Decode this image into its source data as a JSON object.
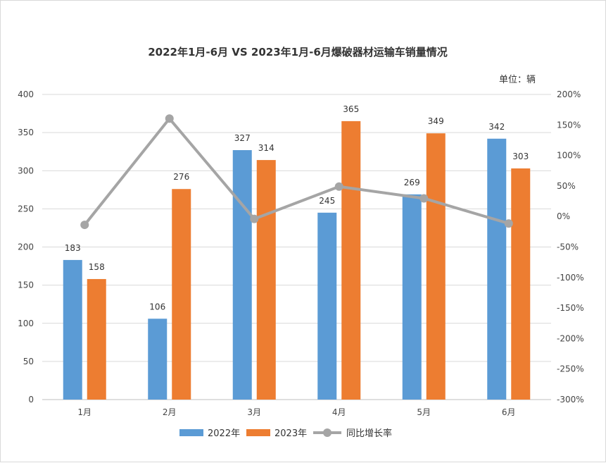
{
  "chart_data": {
    "type": "bar",
    "title": "2022年1月-6月 VS 2023年1月-6月爆破器材运输车销量情况",
    "unit_label": "单位：辆",
    "categories": [
      "1月",
      "2月",
      "3月",
      "4月",
      "5月",
      "6月"
    ],
    "series": [
      {
        "name": "2022年",
        "type": "bar",
        "axis": "left",
        "color": "#5b9bd5",
        "values": [
          183,
          106,
          327,
          245,
          269,
          342
        ]
      },
      {
        "name": "2023年",
        "type": "bar",
        "axis": "left",
        "color": "#ed7d31",
        "values": [
          158,
          276,
          314,
          365,
          349,
          303
        ]
      },
      {
        "name": "同比增长率",
        "type": "line",
        "axis": "right",
        "color": "#a5a5a5",
        "values": [
          -13.7,
          160.4,
          -4.0,
          49.0,
          29.7,
          -11.4
        ]
      }
    ],
    "y_left": {
      "min": 0,
      "max": 400,
      "step": 50,
      "ticks": [
        "0",
        "50",
        "100",
        "150",
        "200",
        "250",
        "300",
        "350",
        "400"
      ]
    },
    "y_right": {
      "min": -300,
      "max": 200,
      "step": 50,
      "ticks": [
        "-300%",
        "-250%",
        "-200%",
        "-150%",
        "-100%",
        "-50%",
        "0%",
        "50%",
        "100%",
        "150%",
        "200%"
      ]
    },
    "grid": true,
    "legend": "bottom"
  }
}
